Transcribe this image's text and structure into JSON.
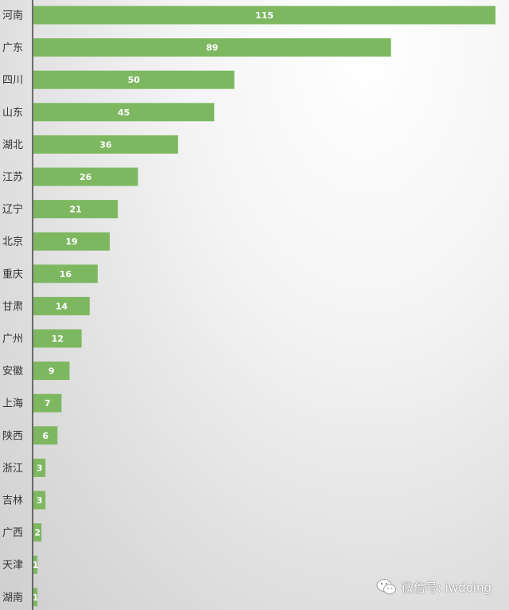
{
  "chart_data": {
    "type": "bar",
    "orientation": "horizontal",
    "categories": [
      "河南",
      "广东",
      "四川",
      "山东",
      "湖北",
      "江苏",
      "辽宁",
      "北京",
      "重庆",
      "甘肃",
      "广州",
      "安徽",
      "上海",
      "陕西",
      "浙江",
      "吉林",
      "广西",
      "天津",
      "湖南"
    ],
    "values": [
      115,
      89,
      50,
      45,
      36,
      26,
      21,
      19,
      16,
      14,
      12,
      9,
      7,
      6,
      3,
      3,
      2,
      1,
      1
    ],
    "xlim": [
      0,
      115
    ],
    "grid": false,
    "legend": "none",
    "bar_color": "#7db861",
    "value_label_color": "#ffffff"
  },
  "watermark": {
    "icon": "wechat-icon",
    "text": "微信号: iwdoing"
  }
}
